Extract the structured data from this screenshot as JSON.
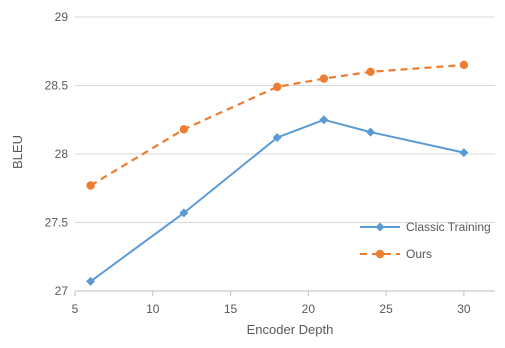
{
  "chart_data": {
    "type": "line",
    "title": "",
    "xlabel": "Encoder Depth",
    "ylabel": "BLEU",
    "xlim": [
      5,
      32
    ],
    "ylim": [
      27,
      29
    ],
    "xticks": [
      5,
      10,
      15,
      20,
      25,
      30
    ],
    "yticks": [
      27,
      27.5,
      28,
      28.5,
      29
    ],
    "xtick_labels": [
      "5",
      "10",
      "15",
      "20",
      "25",
      "30"
    ],
    "ytick_labels": [
      "27",
      "27.5",
      "28",
      "28.5",
      "29"
    ],
    "grid": "horizontal",
    "legend_position": "bottom-right",
    "series": [
      {
        "name": "Classic Training",
        "color": "#5B9BD5",
        "line_style": "solid",
        "marker": "diamond",
        "x": [
          6,
          12,
          18,
          21,
          24,
          30
        ],
        "y": [
          27.07,
          27.57,
          28.12,
          28.25,
          28.16,
          28.01
        ]
      },
      {
        "name": "Ours",
        "color": "#ED7D31",
        "line_style": "dashed",
        "marker": "circle",
        "x": [
          6,
          12,
          18,
          21,
          24,
          30
        ],
        "y": [
          27.77,
          28.18,
          28.49,
          28.55,
          28.6,
          28.65
        ]
      }
    ]
  }
}
